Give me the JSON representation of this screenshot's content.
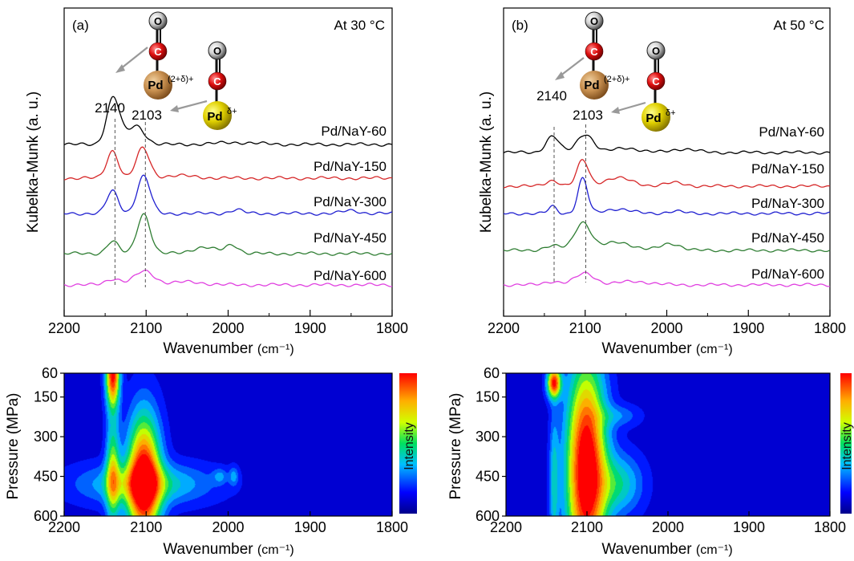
{
  "chart_data": [
    {
      "panel": "(a)",
      "type": "line",
      "annotation": "At 30 °C",
      "xlabel_main": "Wavenumber",
      "xlabel_unit": "(cm⁻¹)",
      "ylabel": "Kubelka-Munk (a. u.)",
      "x_ticks": [
        2200,
        2100,
        2000,
        1900,
        1800
      ],
      "xlim": [
        2200,
        1800
      ],
      "peak_labels": [
        "2140",
        "2103"
      ],
      "peak_positions": [
        2140,
        2103
      ],
      "site_labels": {
        "pd_high": "Pd",
        "pd_high_sup": "(2+δ)+",
        "pd_low": "Pd",
        "pd_low_sup": "δ+",
        "o": "O",
        "c": "C"
      },
      "series": [
        {
          "name": "Pd/NaY-60",
          "color": "#000000",
          "offset": 4,
          "peaks": [
            [
              2140,
              1.9,
              8
            ],
            [
              2112,
              0.75,
              10
            ],
            [
              1990,
              0.08,
              25
            ]
          ]
        },
        {
          "name": "Pd/NaY-150",
          "color": "#d62728",
          "offset": 3,
          "peaks": [
            [
              2141,
              1.1,
              7
            ],
            [
              2104,
              1.2,
              8
            ],
            [
              2060,
              0.1,
              20
            ]
          ]
        },
        {
          "name": "Pd/NaY-300",
          "color": "#1f1fd0",
          "offset": 2,
          "peaks": [
            [
              2141,
              0.9,
              7
            ],
            [
              2103,
              1.5,
              8
            ],
            [
              1990,
              0.15,
              8
            ],
            [
              1850,
              0.12,
              10
            ]
          ]
        },
        {
          "name": "Pd/NaY-450",
          "color": "#2e7d32",
          "offset": 1,
          "peaks": [
            [
              2141,
              0.5,
              7
            ],
            [
              2103,
              1.6,
              8
            ],
            [
              2030,
              0.25,
              15
            ],
            [
              1995,
              0.35,
              8
            ]
          ]
        },
        {
          "name": "Pd/NaY-600",
          "color": "#e040e0",
          "offset": 0,
          "peaks": [
            [
              2140,
              0.25,
              9
            ],
            [
              2102,
              0.55,
              12
            ],
            [
              2050,
              0.12,
              20
            ]
          ]
        }
      ]
    },
    {
      "panel": "(b)",
      "type": "line",
      "annotation": "At 50 °C",
      "xlabel_main": "Wavenumber",
      "xlabel_unit": "(cm⁻¹)",
      "ylabel": "Kubelka-Munk (a. u.)",
      "x_ticks": [
        2200,
        2100,
        2000,
        1900,
        1800
      ],
      "xlim": [
        2200,
        1800
      ],
      "peak_labels": [
        "2140",
        "2103"
      ],
      "peak_positions": [
        2140,
        2103
      ],
      "site_labels": {
        "pd_high": "Pd",
        "pd_high_sup": "(2+δ)+",
        "pd_low": "Pd",
        "pd_low_sup": "δ+",
        "o": "O",
        "c": "C"
      },
      "series": [
        {
          "name": "Pd/NaY-60",
          "color": "#000000",
          "offset": 4,
          "peaks": [
            [
              2140,
              0.7,
              8
            ],
            [
              2100,
              0.8,
              10
            ],
            [
              2050,
              0.2,
              15
            ],
            [
              1980,
              0.15,
              15
            ]
          ]
        },
        {
          "name": "Pd/NaY-150",
          "color": "#d62728",
          "offset": 3,
          "peaks": [
            [
              2140,
              0.25,
              8
            ],
            [
              2103,
              1.1,
              7
            ],
            [
              2060,
              0.35,
              18
            ],
            [
              1990,
              0.15,
              12
            ]
          ]
        },
        {
          "name": "Pd/NaY-300",
          "color": "#1f1fd0",
          "offset": 2,
          "peaks": [
            [
              2140,
              0.3,
              5
            ],
            [
              2103,
              1.5,
              6
            ],
            [
              2060,
              0.2,
              15
            ],
            [
              1990,
              0.1,
              10
            ]
          ]
        },
        {
          "name": "Pd/NaY-450",
          "color": "#2e7d32",
          "offset": 1,
          "peaks": [
            [
              2140,
              0.2,
              10
            ],
            [
              2103,
              1.2,
              10
            ],
            [
              2060,
              0.35,
              18
            ],
            [
              1995,
              0.3,
              12
            ]
          ]
        },
        {
          "name": "Pd/NaY-600",
          "color": "#e040e0",
          "offset": 0,
          "peaks": [
            [
              2140,
              0.15,
              10
            ],
            [
              2100,
              0.5,
              12
            ],
            [
              2040,
              0.15,
              20
            ]
          ]
        }
      ]
    },
    {
      "panel": "(a) contour",
      "type": "heatmap",
      "xlabel_main": "Wavenumber",
      "xlabel_unit": "(cm⁻¹)",
      "ylabel": "Pressure (MPa)",
      "colorbar_label": "Intensity",
      "x_ticks": [
        2200,
        2100,
        2000,
        1900,
        1800
      ],
      "xlim": [
        2200,
        1800
      ],
      "y_ticks": [
        60,
        150,
        300,
        450,
        600
      ],
      "ylim": [
        60,
        600
      ],
      "blobs": [
        {
          "x": 2103,
          "y": 470,
          "sx": 14,
          "sy": 170,
          "a": 1.1
        },
        {
          "x": 2141,
          "y": 60,
          "sx": 6,
          "sy": 90,
          "a": 1.0
        },
        {
          "x": 2141,
          "y": 440,
          "sx": 6,
          "sy": 140,
          "a": 0.55
        },
        {
          "x": 2103,
          "y": 480,
          "sx": 55,
          "sy": 55,
          "a": 0.4
        },
        {
          "x": 2010,
          "y": 450,
          "sx": 6,
          "sy": 20,
          "a": 0.18
        },
        {
          "x": 1993,
          "y": 450,
          "sx": 4,
          "sy": 25,
          "a": 0.22
        }
      ]
    },
    {
      "panel": "(b) contour",
      "type": "heatmap",
      "xlabel_main": "Wavenumber",
      "xlabel_unit": "(cm⁻¹)",
      "ylabel": "Pressure (MPa)",
      "colorbar_label": "Intensity",
      "x_ticks": [
        2200,
        2100,
        2000,
        1900,
        1800
      ],
      "xlim": [
        2200,
        1800
      ],
      "y_ticks": [
        60,
        150,
        300,
        450,
        600
      ],
      "ylim": [
        60,
        600
      ],
      "blobs": [
        {
          "x": 2101,
          "y": 430,
          "sx": 17,
          "sy": 280,
          "a": 1.15
        },
        {
          "x": 2141,
          "y": 95,
          "sx": 6,
          "sy": 40,
          "a": 0.95
        },
        {
          "x": 2141,
          "y": 480,
          "sx": 4,
          "sy": 180,
          "a": 0.3
        },
        {
          "x": 2060,
          "y": 480,
          "sx": 20,
          "sy": 80,
          "a": 0.35
        },
        {
          "x": 2060,
          "y": 220,
          "sx": 18,
          "sy": 30,
          "a": 0.18
        }
      ]
    }
  ]
}
